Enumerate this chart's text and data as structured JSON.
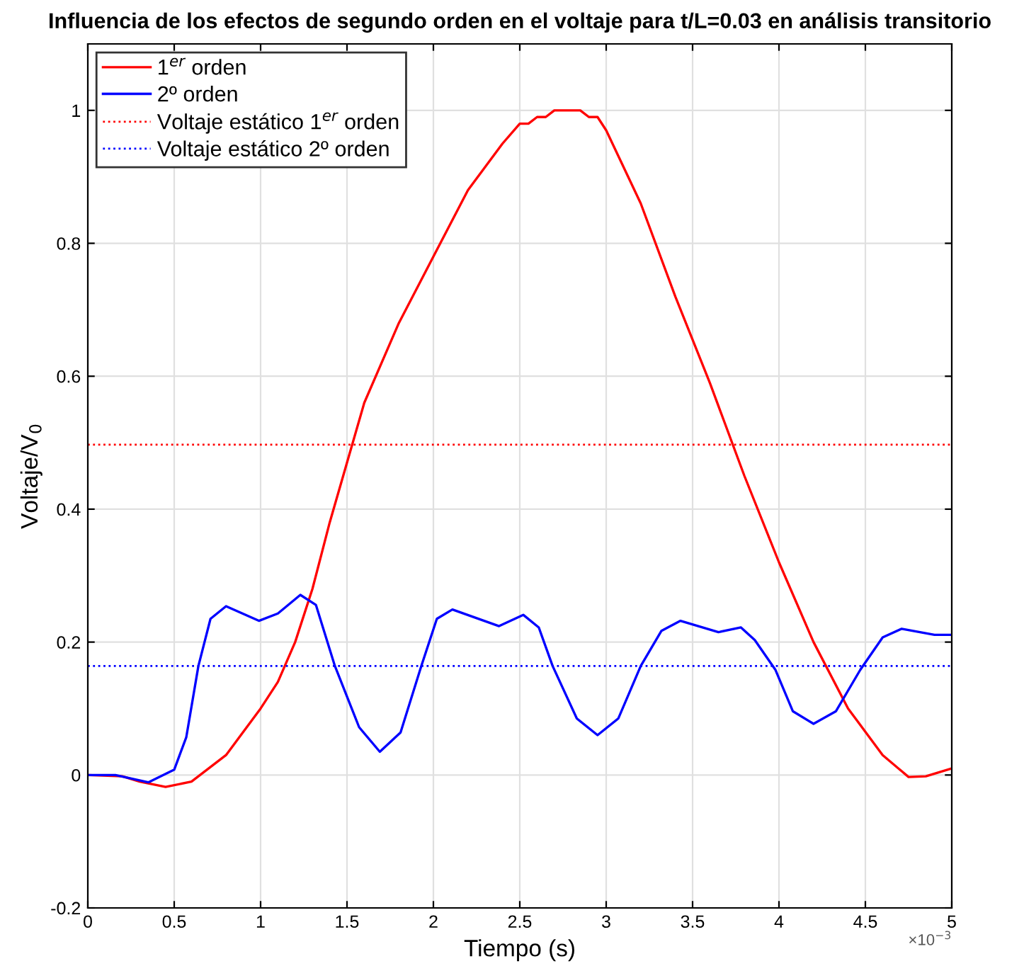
{
  "chart_data": {
    "type": "line",
    "title": "Influencia de los efectos de segundo orden en el voltaje para t/L=0.03 en análisis transitorio",
    "xlabel": "Tiempo (s)",
    "ylabel": "Voltaje/V$_{0}$",
    "annotations": [
      "×10$^{−3}$"
    ],
    "series": [
      {
        "name": "1$^{er}$ orden",
        "color": "#ff0000",
        "x": [
          0,
          0.2,
          0.3,
          0.45,
          0.6,
          0.8,
          1.0,
          1.1,
          1.2,
          1.3,
          1.4,
          1.5,
          1.6,
          1.8,
          2.0,
          2.2,
          2.4,
          2.5,
          2.55,
          2.6,
          2.65,
          2.7,
          2.8,
          2.85,
          2.9,
          2.95,
          3.0,
          3.2,
          3.4,
          3.6,
          3.8,
          4.0,
          4.2,
          4.4,
          4.6,
          4.75,
          4.85,
          5.0
        ],
        "values": [
          0,
          -0.002,
          -0.01,
          -0.018,
          -0.01,
          0.03,
          0.1,
          0.14,
          0.2,
          0.28,
          0.38,
          0.47,
          0.56,
          0.68,
          0.78,
          0.88,
          0.95,
          0.98,
          0.98,
          0.99,
          0.99,
          1.0,
          1.0,
          1.0,
          0.99,
          0.99,
          0.97,
          0.86,
          0.72,
          0.59,
          0.45,
          0.32,
          0.2,
          0.1,
          0.03,
          -0.003,
          -0.002,
          0.01
        ]
      },
      {
        "name": "2º orden",
        "color": "#0000ff",
        "x": [
          0,
          0.16,
          0.35,
          0.5,
          0.57,
          0.64,
          0.71,
          0.8,
          0.99,
          1.1,
          1.23,
          1.32,
          1.43,
          1.57,
          1.69,
          1.81,
          1.93,
          2.02,
          2.11,
          2.38,
          2.52,
          2.61,
          2.69,
          2.83,
          2.95,
          3.07,
          3.2,
          3.32,
          3.43,
          3.65,
          3.78,
          3.86,
          3.98,
          4.08,
          4.2,
          4.33,
          4.47,
          4.6,
          4.71,
          4.9,
          5.0
        ],
        "values": [
          0,
          0,
          -0.011,
          0.008,
          0.057,
          0.164,
          0.235,
          0.254,
          0.232,
          0.243,
          0.271,
          0.256,
          0.164,
          0.072,
          0.035,
          0.064,
          0.164,
          0.235,
          0.249,
          0.224,
          0.241,
          0.222,
          0.164,
          0.085,
          0.06,
          0.085,
          0.164,
          0.217,
          0.232,
          0.215,
          0.222,
          0.203,
          0.158,
          0.096,
          0.077,
          0.096,
          0.158,
          0.207,
          0.22,
          0.211,
          0.211
        ]
      }
    ],
    "ref_lines": [
      {
        "axis": "y",
        "value": 0.497,
        "label": "Voltaje estático 1$^{er}$ orden",
        "color": "#ff0000",
        "line_style": "dotted"
      },
      {
        "axis": "y",
        "value": 0.164,
        "label": "Voltaje estático 2º orden",
        "color": "#0000ff",
        "line_style": "dotted"
      }
    ],
    "xlim": [
      0,
      5
    ],
    "ylim": [
      -0.2,
      1.1
    ],
    "xticks": [
      0,
      {
        "value": 0.5,
        "label": "0.5"
      },
      1,
      1.5,
      2,
      2.5,
      3,
      3.5,
      4,
      4.5,
      5
    ],
    "yticks": [
      -0.2,
      0,
      0.2,
      0.4,
      0.6,
      0.8,
      1
    ],
    "grid": true,
    "legend": "top left",
    "line_style": "solid",
    "marker": "none"
  }
}
